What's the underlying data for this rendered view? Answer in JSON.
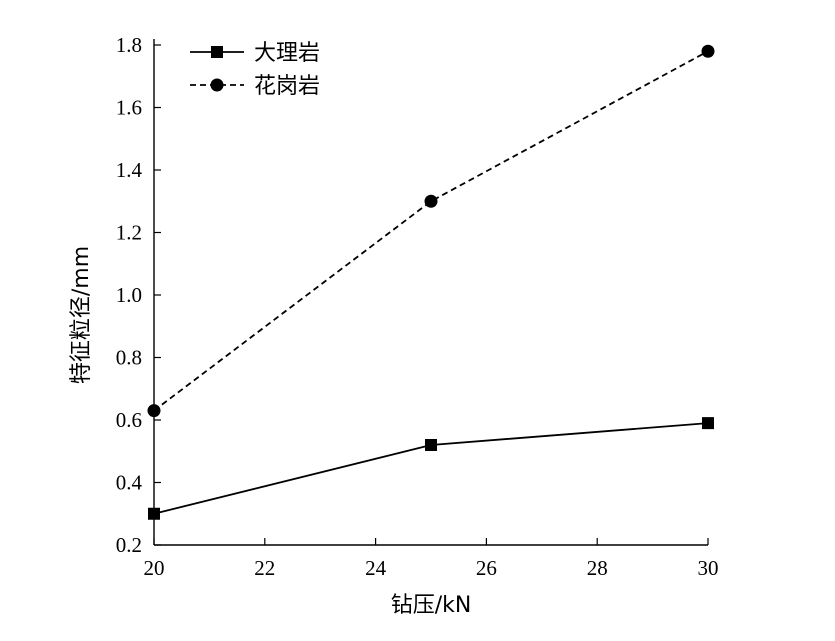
{
  "chart_data": {
    "type": "line",
    "xlabel": "钻压/kN",
    "ylabel": "特征粒径/mm",
    "xlim": [
      20,
      30
    ],
    "ylim": [
      0.2,
      1.8
    ],
    "x_ticks": [
      20,
      22,
      24,
      26,
      28,
      30
    ],
    "y_ticks": [
      "0.2",
      "0.4",
      "0.6",
      "0.8",
      "1.0",
      "1.2",
      "1.4",
      "1.6",
      "1.8"
    ],
    "legend_position": "top-left",
    "grid": false,
    "series": [
      {
        "name": "大理岩",
        "marker": "square",
        "line_style": "solid",
        "color": "#000000",
        "x": [
          20,
          25,
          30
        ],
        "values": [
          0.3,
          0.52,
          0.59
        ]
      },
      {
        "name": "花岗岩",
        "marker": "circle",
        "line_style": "dashed",
        "color": "#000000",
        "x": [
          20,
          25,
          30
        ],
        "values": [
          0.63,
          1.3,
          1.78
        ]
      }
    ]
  }
}
